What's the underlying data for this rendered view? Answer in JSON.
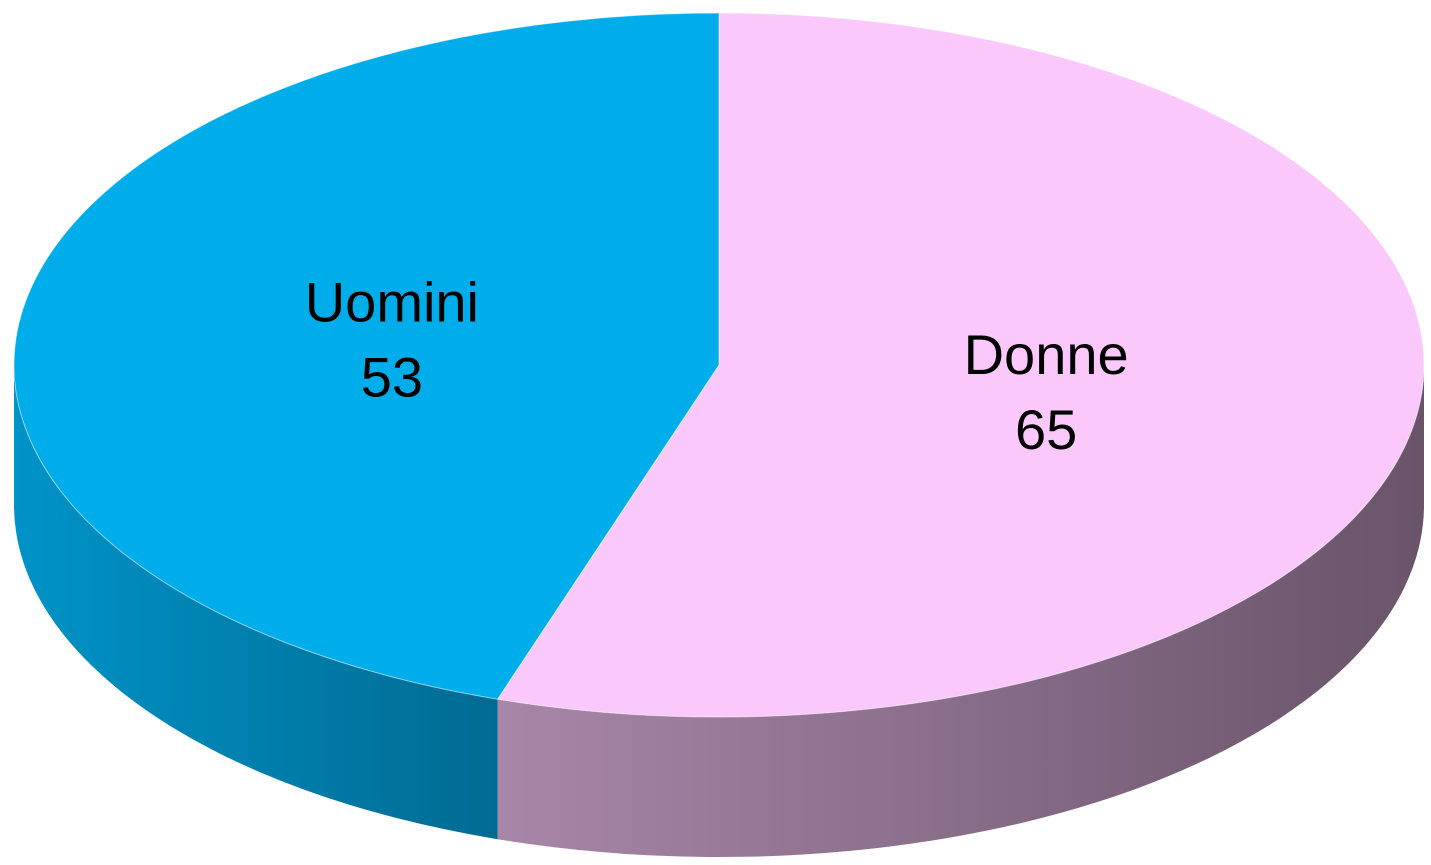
{
  "chart_data": {
    "type": "pie",
    "categories": [
      "Donne",
      "Uomini"
    ],
    "values": [
      65,
      53
    ],
    "colors": [
      "#fac8fa",
      "#00adeb"
    ]
  }
}
